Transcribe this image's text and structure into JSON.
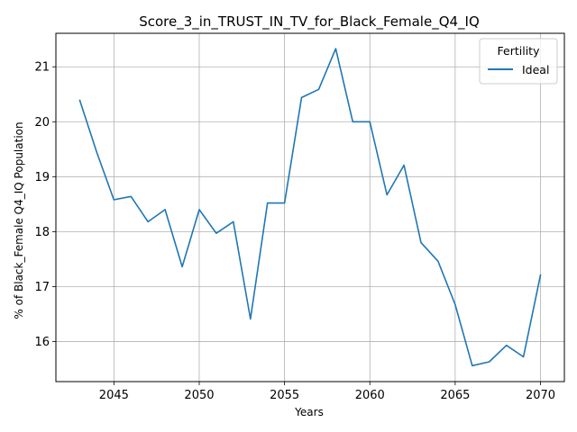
{
  "chart_data": {
    "type": "line",
    "title": "Score_3_in_TRUST_IN_TV_for_Black_Female_Q4_IQ",
    "xlabel": "Years",
    "ylabel": "% of Black_Female Q4_IQ Population",
    "xlim": [
      2041.6,
      2071.4
    ],
    "ylim": [
      15.27,
      21.61
    ],
    "xticks": [
      2045,
      2050,
      2055,
      2060,
      2065,
      2070
    ],
    "yticks": [
      16,
      17,
      18,
      19,
      20,
      21
    ],
    "grid": true,
    "legend": {
      "title": "Fertility",
      "placement": "top-right"
    },
    "series": [
      {
        "name": "Ideal",
        "color": "#1f77b4",
        "x": [
          2043,
          2044,
          2045,
          2046,
          2047,
          2048,
          2049,
          2050,
          2051,
          2052,
          2053,
          2054,
          2055,
          2056,
          2057,
          2058,
          2059,
          2060,
          2061,
          2062,
          2063,
          2064,
          2065,
          2066,
          2067,
          2068,
          2069,
          2070
        ],
        "y": [
          20.39,
          19.44,
          18.58,
          18.64,
          18.18,
          18.4,
          17.36,
          18.4,
          17.97,
          18.18,
          16.41,
          18.52,
          18.52,
          20.44,
          20.59,
          21.33,
          20.0,
          20.0,
          18.67,
          19.21,
          17.8,
          17.46,
          16.67,
          15.56,
          15.63,
          15.93,
          15.72,
          17.21
        ]
      }
    ]
  }
}
